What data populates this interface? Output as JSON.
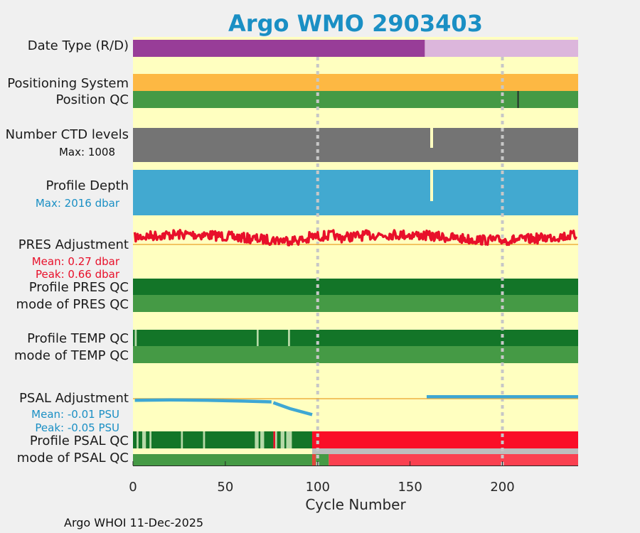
{
  "chart_data": {
    "type": "status-timeline",
    "title": "Argo WMO 2903403",
    "xlabel": "Cycle Number",
    "xlim": [
      0,
      241
    ],
    "xticks": [
      0,
      50,
      100,
      150,
      200
    ],
    "xtick_labels": [
      "0",
      "50",
      "100",
      "150",
      "200"
    ],
    "vertical_gridlines_at": [
      100,
      200
    ],
    "footer": "Argo WHOI 11-Dec-2025",
    "rows": {
      "date_type": {
        "label": "Date Type (R/D)",
        "segments": [
          {
            "from": 0,
            "to": 158,
            "status": "D",
            "color": "#983d98"
          },
          {
            "from": 158,
            "to": 241,
            "status": "R",
            "color": "#dcb6dc"
          }
        ]
      },
      "positioning_system": {
        "label": "Positioning System",
        "segments": [
          {
            "from": 0,
            "to": 241,
            "status": "GPS",
            "color": "#fdb843"
          }
        ]
      },
      "position_qc": {
        "label": "Position QC",
        "segments": [
          {
            "from": 0,
            "to": 208,
            "status": "1",
            "color": "#459a45"
          },
          {
            "from": 208,
            "to": 209,
            "status": "flag",
            "color": "#1e3a28"
          },
          {
            "from": 209,
            "to": 241,
            "status": "1",
            "color": "#459a45"
          }
        ]
      },
      "ctd_levels": {
        "label": "Number CTD levels",
        "max_label": "Max: 1008",
        "color": "#747474",
        "gaps": [
          161.5
        ]
      },
      "profile_depth": {
        "label": "Profile Depth",
        "max_label": "Max: 2016 dbar",
        "color": "#42a9d0",
        "gaps": [
          161.5
        ]
      },
      "pres_adjustment": {
        "label": "PRES Adjustment",
        "mean_label": "Mean: 0.27 dbar",
        "peak_label": "Peak: 0.66 dbar",
        "color": "#e8102a"
      },
      "profile_pres_qc": {
        "label": "Profile PRES QC",
        "segments": [
          {
            "from": 0,
            "to": 241,
            "status": "A",
            "color": "#137528"
          }
        ]
      },
      "mode_pres_qc": {
        "label": "mode of PRES QC",
        "segments": [
          {
            "from": 0,
            "to": 241,
            "status": "1",
            "color": "#459a45"
          }
        ]
      },
      "profile_temp_qc": {
        "label": "Profile TEMP QC",
        "segments": [
          {
            "from": 0,
            "to": 1,
            "status": "A",
            "color": "#137528"
          },
          {
            "from": 1,
            "to": 2,
            "status": "B",
            "color": "#b5d9a8"
          },
          {
            "from": 2,
            "to": 67,
            "status": "A",
            "color": "#137528"
          },
          {
            "from": 67,
            "to": 68,
            "status": "B",
            "color": "#b5d9a8"
          },
          {
            "from": 68,
            "to": 84,
            "status": "A",
            "color": "#137528"
          },
          {
            "from": 84,
            "to": 85,
            "status": "B",
            "color": "#b5d9a8"
          },
          {
            "from": 85,
            "to": 241,
            "status": "A",
            "color": "#137528"
          }
        ]
      },
      "mode_temp_qc": {
        "label": "mode of TEMP QC",
        "segments": [
          {
            "from": 0,
            "to": 241,
            "status": "1",
            "color": "#459a45"
          }
        ]
      },
      "psal_adjustment": {
        "label": "PSAL Adjustment",
        "mean_label": "Mean: -0.01 PSU",
        "peak_label": "Peak: -0.05 PSU",
        "color": "#3ea7d3",
        "segments": [
          {
            "x": [
              1,
              20,
              40,
              60,
              75
            ],
            "y": [
              -0.004,
              -0.003,
              -0.004,
              -0.006,
              -0.008
            ]
          },
          {
            "x": [
              76,
              85,
              97
            ],
            "y": [
              -0.01,
              -0.025,
              -0.04
            ]
          },
          {
            "x": [
              159,
              241
            ],
            "y": [
              0.005,
              0.005
            ]
          }
        ]
      },
      "profile_psal_qc": {
        "label": "Profile PSAL QC",
        "segments": [
          {
            "from": 0,
            "to": 2,
            "status": "A",
            "color": "#137528"
          },
          {
            "from": 2,
            "to": 3,
            "status": "B",
            "color": "#b5d9a8"
          },
          {
            "from": 3,
            "to": 5,
            "status": "A",
            "color": "#137528"
          },
          {
            "from": 5,
            "to": 7,
            "status": "B",
            "color": "#b5d9a8"
          },
          {
            "from": 7,
            "to": 9,
            "status": "A",
            "color": "#137528"
          },
          {
            "from": 9,
            "to": 10,
            "status": "B",
            "color": "#b5d9a8"
          },
          {
            "from": 10,
            "to": 26,
            "status": "A",
            "color": "#137528"
          },
          {
            "from": 26,
            "to": 27,
            "status": "B",
            "color": "#b5d9a8"
          },
          {
            "from": 27,
            "to": 38,
            "status": "A",
            "color": "#137528"
          },
          {
            "from": 38,
            "to": 39,
            "status": "B",
            "color": "#b5d9a8"
          },
          {
            "from": 39,
            "to": 66,
            "status": "A",
            "color": "#137528"
          },
          {
            "from": 66,
            "to": 68,
            "status": "B",
            "color": "#b5d9a8"
          },
          {
            "from": 68,
            "to": 69,
            "status": "A",
            "color": "#137528"
          },
          {
            "from": 69,
            "to": 71,
            "status": "B",
            "color": "#b5d9a8"
          },
          {
            "from": 71,
            "to": 76,
            "status": "A",
            "color": "#137528"
          },
          {
            "from": 76,
            "to": 77,
            "status": "F",
            "color": "#e8102a"
          },
          {
            "from": 77,
            "to": 78,
            "status": "B",
            "color": "#b5d9a8"
          },
          {
            "from": 78,
            "to": 80,
            "status": "A",
            "color": "#137528"
          },
          {
            "from": 80,
            "to": 82,
            "status": "B",
            "color": "#b5d9a8"
          },
          {
            "from": 82,
            "to": 83,
            "status": "A",
            "color": "#137528"
          },
          {
            "from": 83,
            "to": 86,
            "status": "B",
            "color": "#b5d9a8"
          },
          {
            "from": 86,
            "to": 97,
            "status": "A",
            "color": "#137528"
          },
          {
            "from": 97,
            "to": 241,
            "status": "F",
            "color": "#fa0e27"
          }
        ]
      },
      "mode_psal_qc": {
        "label": "mode of PSAL QC",
        "segments": [
          {
            "from": 0,
            "to": 97,
            "status": "1",
            "color": "#459a45"
          },
          {
            "from": 97,
            "to": 99,
            "status": "4",
            "color": "#e0483b"
          },
          {
            "from": 99,
            "to": 106,
            "status": "1",
            "color": "#459a45"
          },
          {
            "from": 106,
            "to": 241,
            "status": "4",
            "color": "#fa4050"
          }
        ]
      },
      "psal_qc_upper_band": {
        "segments": [
          {
            "from": 97,
            "to": 241,
            "status": "missing",
            "color": "#bdbdbd"
          }
        ]
      }
    },
    "colors": {
      "panel_background": "#ffffc0",
      "reference_line": "#eeb040",
      "gridline": "#c7c7c7",
      "title": "#1a8fc4"
    }
  }
}
